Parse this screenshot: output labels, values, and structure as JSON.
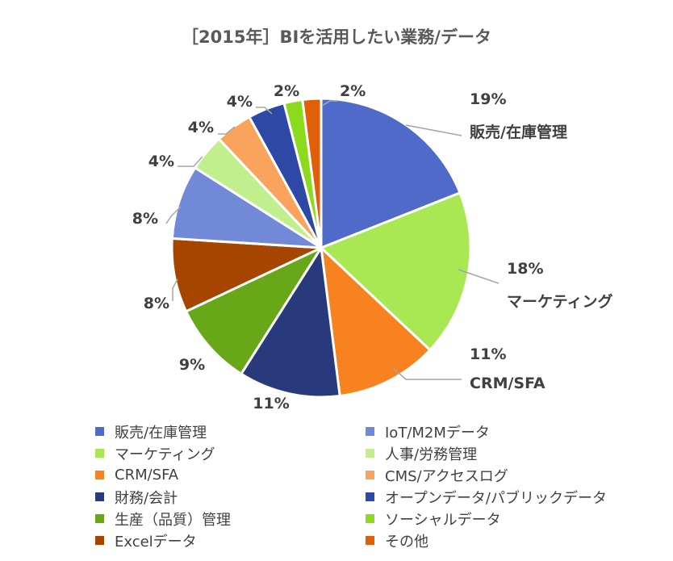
{
  "chart_data": {
    "type": "pie",
    "title": "［2015年］BIを活用したい業務/データ",
    "slices": [
      {
        "label": "販売/在庫管理",
        "value": 19,
        "value_label": "19%",
        "color": "#4F6AC8"
      },
      {
        "label": "マーケティング",
        "value": 18,
        "value_label": "18%",
        "color": "#A9E852"
      },
      {
        "label": "CRM/SFA",
        "value": 11,
        "value_label": "11%",
        "color": "#F7821F"
      },
      {
        "label": "財務/会計",
        "value": 11,
        "value_label": "11%",
        "color": "#283A7C"
      },
      {
        "label": "生産（品質）管理",
        "value": 9,
        "value_label": "9%",
        "color": "#68A717"
      },
      {
        "label": "Excelデータ",
        "value": 8,
        "value_label": "8%",
        "color": "#A64500"
      },
      {
        "label": "IoT/M2Mデータ",
        "value": 8,
        "value_label": "8%",
        "color": "#7189D6"
      },
      {
        "label": "人事/労務管理",
        "value": 4,
        "value_label": "4%",
        "color": "#C2EF8D"
      },
      {
        "label": "CMS/アクセスログ",
        "value": 4,
        "value_label": "4%",
        "color": "#F9A35D"
      },
      {
        "label": "オープンデータ/パブリックデータ",
        "value": 4,
        "value_label": "4%",
        "color": "#2E48A6"
      },
      {
        "label": "ソーシャルデータ",
        "value": 2,
        "value_label": "2%",
        "color": "#8BDB1C"
      },
      {
        "label": "その他",
        "value": 2,
        "value_label": "2%",
        "color": "#E05F08"
      }
    ],
    "legend_order": [
      0,
      6,
      1,
      7,
      2,
      8,
      3,
      9,
      4,
      10,
      5,
      11
    ],
    "legend_position": "bottom"
  }
}
